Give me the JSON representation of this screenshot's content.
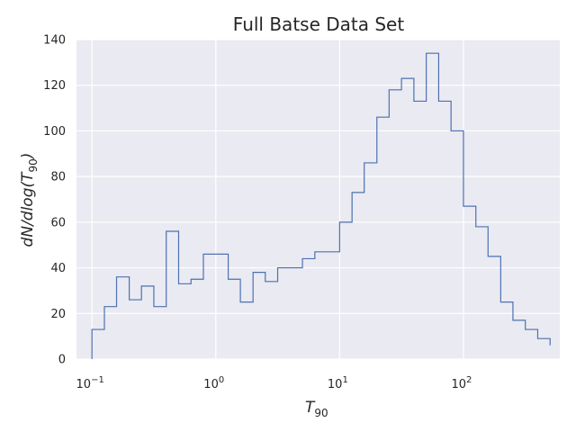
{
  "chart_data": {
    "type": "histogram",
    "title": "Full Batse Data Set",
    "xlabel": "T",
    "xlabel_subscript": "90",
    "ylabel_main": "dN/dlog(T",
    "ylabel_subscript": "90",
    "ylabel_close": ")",
    "x_scale": "log",
    "xlim": [
      0.075,
      600
    ],
    "ylim": [
      0,
      140
    ],
    "grid": true,
    "x_ticks": [
      {
        "value": 0.1,
        "base": "10",
        "exp": "−1"
      },
      {
        "value": 1,
        "base": "10",
        "exp": "0"
      },
      {
        "value": 10,
        "base": "10",
        "exp": "1"
      },
      {
        "value": 100,
        "base": "10",
        "exp": "2"
      }
    ],
    "y_ticks": [
      {
        "value": 0,
        "label": "0"
      },
      {
        "value": 20,
        "label": "20"
      },
      {
        "value": 40,
        "label": "40"
      },
      {
        "value": 60,
        "label": "60"
      },
      {
        "value": 80,
        "label": "80"
      },
      {
        "value": 100,
        "label": "100"
      },
      {
        "value": 120,
        "label": "120"
      },
      {
        "value": 140,
        "label": "140"
      }
    ],
    "bin_edges": [
      0.1,
      0.126,
      0.158,
      0.2,
      0.251,
      0.316,
      0.398,
      0.501,
      0.631,
      0.794,
      1.0,
      1.26,
      1.58,
      2.0,
      2.51,
      3.16,
      3.98,
      5.01,
      6.31,
      7.94,
      10.0,
      12.6,
      15.8,
      20.0,
      25.1,
      31.6,
      39.8,
      50.1,
      63.1,
      79.4,
      100,
      126,
      158,
      200,
      251,
      316,
      398,
      501
    ],
    "counts": [
      13,
      23,
      36,
      26,
      32,
      23,
      56,
      33,
      35,
      46,
      46,
      35,
      25,
      38,
      34,
      40,
      40,
      44,
      47,
      47,
      60,
      73,
      86,
      106,
      118,
      123,
      113,
      134,
      113,
      100,
      67,
      58,
      45,
      25,
      17,
      13,
      9,
      6
    ],
    "colors": {
      "background": "#eaeaf2",
      "grid": "#ffffff",
      "line": "#4c72b0",
      "text": "#262626"
    }
  }
}
